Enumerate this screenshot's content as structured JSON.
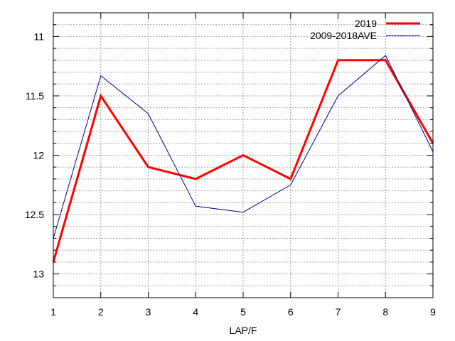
{
  "chart_data": {
    "type": "line",
    "xlabel": "LAP/F",
    "ylabel": "",
    "x": [
      1,
      2,
      3,
      4,
      5,
      6,
      7,
      8,
      9
    ],
    "xlim": [
      1,
      9
    ],
    "ylim": [
      13.2,
      10.8
    ],
    "y_inverted": true,
    "y_major_ticks": [
      11,
      11.5,
      12,
      12.5,
      13
    ],
    "y_tick_labels": [
      "11",
      "11.5",
      "12",
      "12.5",
      "13"
    ],
    "x_tick_labels": [
      "1",
      "2",
      "3",
      "4",
      "5",
      "6",
      "7",
      "8",
      "9"
    ],
    "grid": true,
    "legend_position": "top-right",
    "series": [
      {
        "name": "2019",
        "color": "#ff0000",
        "values": [
          12.9,
          11.5,
          12.1,
          12.2,
          12.0,
          12.2,
          11.2,
          11.2,
          11.9
        ]
      },
      {
        "name": "2009-2018AVE",
        "color": "#00008b",
        "values": [
          12.7,
          11.33,
          11.65,
          12.43,
          12.48,
          12.25,
          11.5,
          11.16,
          11.97
        ]
      }
    ]
  }
}
